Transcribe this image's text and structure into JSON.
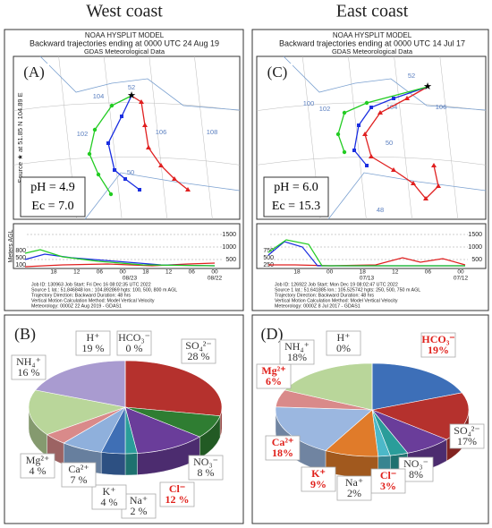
{
  "panels": [
    {
      "heading": "West coast",
      "model": "NOAA HYSPLIT MODEL",
      "title": "Backward trajectories ending at 0000 UTC 24 Aug 19",
      "subtitle": "GDAS Meteorological Data",
      "letter": "(A)",
      "source": "Source ★ at 51.85 N 104.89 E",
      "ph": "pH = 4.9",
      "ec": "Ec = 7.0",
      "axis_label": "Meters AGL",
      "map_labels": [
        "52",
        "102",
        "104",
        "106",
        "108",
        "50"
      ],
      "height_ticks": [
        "1500",
        "1000",
        "500"
      ],
      "start_heights": [
        "800",
        "500",
        "100"
      ],
      "times": [
        "18",
        "12",
        "06",
        "00",
        "18",
        "12",
        "06",
        "00"
      ],
      "dates": [
        "08/23",
        "08/22"
      ],
      "footer": [
        "Job ID: 130963     Job Start: Fri Dec 16 08:02:35 UTC 2022",
        "Source 1 lat.: 51.846848  lon.: 104.892869  hgts: 100, 500, 800 m AGL",
        "Trajectory Direction: Backward     Duration: 48 hrs",
        "Vertical Motion Calculation Method:     Model Vertical Velocity",
        "Meteorology: 0000Z 22 Aug 2019 - GDAS1"
      ]
    },
    {
      "heading": "East coast",
      "model": "NOAA HYSPLIT MODEL",
      "title": "Backward trajectories ending at 0000 UTC 14 Jul 17",
      "subtitle": "GDAS Meteorological Data",
      "letter": "(C)",
      "ph": "pH = 6.0",
      "ec": "Ec = 15.3",
      "map_labels": [
        "52",
        "100",
        "102",
        "104",
        "106",
        "50",
        "48"
      ],
      "height_ticks": [
        "1500",
        "1000",
        "500"
      ],
      "start_heights": [
        "750",
        "500",
        "250"
      ],
      "times": [
        "18",
        "00",
        "18",
        "12",
        "06",
        "00"
      ],
      "dates": [
        "07/13",
        "07/12"
      ],
      "footer": [
        "Job ID: 126922     Job Start: Mon Dec 19 08:02:47 UTC 2022",
        "Source 1 lat.: 51.641885  lon.: 105.525742  hgts: 250, 500, 750 m AGL",
        "Trajectory Direction: Backward     Duration: 48 hrs",
        "Vertical Motion Calculation Method:     Model Vertical Velocity",
        "Meteorology: 0000Z 8 Jul 2017 - GDAS1"
      ]
    }
  ],
  "chart_data": [
    {
      "type": "pie",
      "annotation": "(B)",
      "categories": [
        "SO₄²⁻",
        "NO₃⁻",
        "Cl⁻",
        "Na⁺",
        "K⁺",
        "Ca²⁺",
        "Mg²⁺",
        "NH₄⁺",
        "H⁺",
        "HCO₃⁻"
      ],
      "values": [
        28,
        8,
        12,
        2,
        4,
        7,
        4,
        16,
        19,
        0
      ],
      "value_labels": [
        "28 %",
        "8 %",
        "12 %",
        "2 %",
        "4 %",
        "7 %",
        "4 %",
        "16 %",
        "19 %",
        "0 %"
      ],
      "colors": [
        "#b5312d",
        "#2f7d32",
        "#6a3d9a",
        "#2a9d9a",
        "#3f6fb5",
        "#8fb0dc",
        "#d98a8a",
        "#b9d69a",
        "#a99bd0",
        "#4a7bc0"
      ],
      "label_colors": [
        "#333333",
        "#333333",
        "#e0201b",
        "#333333",
        "#333333",
        "#333333",
        "#333333",
        "#333333",
        "#333333",
        "#333333"
      ]
    },
    {
      "type": "pie",
      "annotation": "(D)",
      "categories": [
        "HCO₃⁻",
        "SO₄²⁻",
        "NO₃⁻",
        "Cl⁻",
        "Na⁺",
        "K⁺",
        "Ca²⁺",
        "Mg²⁺",
        "NH₄⁺",
        "H⁺"
      ],
      "values": [
        19,
        17,
        8,
        3,
        2,
        9,
        18,
        6,
        18,
        0
      ],
      "value_labels": [
        "19%",
        "17%",
        "8%",
        "3%",
        "2%",
        "9%",
        "18%",
        "6%",
        "18%",
        "0%"
      ],
      "colors": [
        "#3d6fb8",
        "#b5312d",
        "#6a3d9a",
        "#2a9d9a",
        "#4cb8c8",
        "#e07b2a",
        "#9bb7e0",
        "#d98a8a",
        "#b9d69a",
        "#a99bd0"
      ],
      "label_colors": [
        "#e0201b",
        "#333333",
        "#333333",
        "#e0201b",
        "#333333",
        "#e0201b",
        "#e0201b",
        "#e0201b",
        "#333333",
        "#333333"
      ]
    }
  ]
}
